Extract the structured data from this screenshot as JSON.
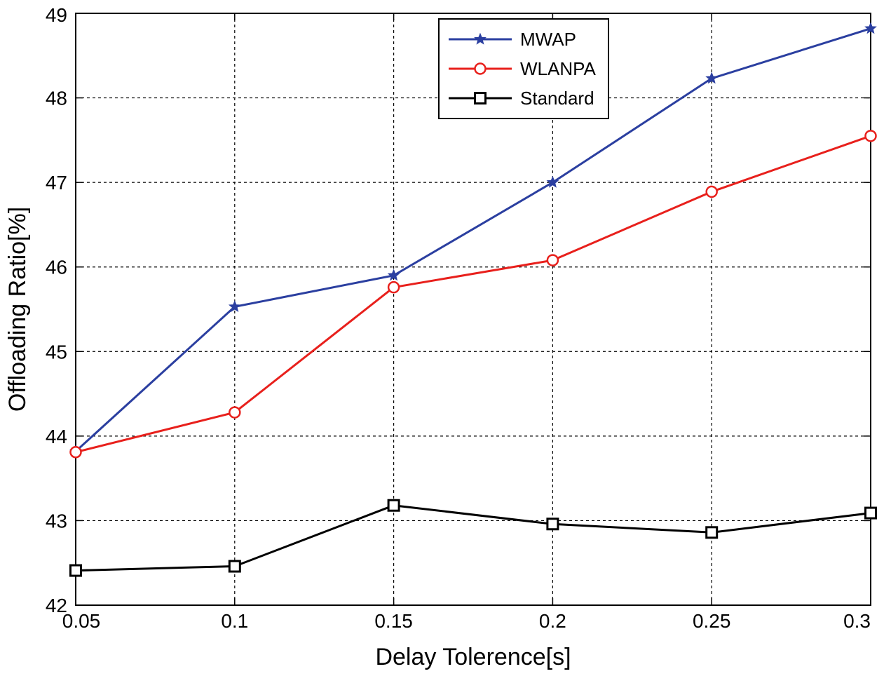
{
  "chart_data": {
    "type": "line",
    "title": "",
    "xlabel": "Delay Tolerence[s]",
    "ylabel": "Offloading Ratio[%]",
    "xlim": [
      0.05,
      0.3
    ],
    "ylim": [
      42,
      49
    ],
    "xticks": [
      "0.05",
      "0.1",
      "0.15",
      "0.2",
      "0.25",
      "0.3"
    ],
    "yticks": [
      "42",
      "43",
      "44",
      "45",
      "46",
      "47",
      "48",
      "49"
    ],
    "grid": true,
    "legend_position": "top-right",
    "x": [
      0.05,
      0.1,
      0.15,
      0.2,
      0.25,
      0.3
    ],
    "series": [
      {
        "name": "MWAP",
        "color": "#2b3fa0",
        "marker": "star",
        "values": [
          43.82,
          45.53,
          45.9,
          47.0,
          48.23,
          48.82
        ]
      },
      {
        "name": "WLANPA",
        "color": "#e8201c",
        "marker": "circle",
        "values": [
          43.81,
          44.28,
          45.76,
          46.08,
          46.89,
          47.55
        ]
      },
      {
        "name": "Standard",
        "color": "#000000",
        "marker": "square",
        "values": [
          42.41,
          42.46,
          43.18,
          42.96,
          42.86,
          43.09
        ]
      }
    ]
  }
}
